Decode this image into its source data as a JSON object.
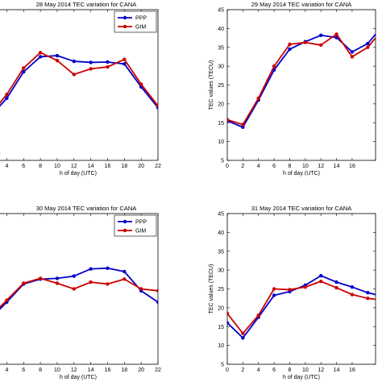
{
  "colors": {
    "PPP": "#0000cc",
    "GIM": "#cc0000"
  },
  "chart_data": [
    {
      "type": "line",
      "title": "28 May 2014 TEC variation for CANA",
      "xlabel": "h of day (UTC)",
      "ylabel": "",
      "xlim": [
        3,
        22
      ],
      "ylim": [
        5,
        45
      ],
      "xticks": [
        "4",
        "6",
        "8",
        "10",
        "12",
        "14",
        "16",
        "18",
        "20",
        "22"
      ],
      "yticks": [],
      "legend": [
        "PPP",
        "GIM"
      ],
      "series": [
        {
          "name": "PPP",
          "x": [
            2,
            4,
            6,
            8,
            10,
            12,
            14,
            16,
            18,
            20,
            22
          ],
          "y": [
            16.5,
            21.5,
            28.5,
            32.5,
            32.8,
            31.3,
            31.0,
            31.1,
            30.6,
            24.5,
            19.0
          ]
        },
        {
          "name": "GIM",
          "x": [
            2,
            4,
            6,
            8,
            10,
            12,
            14,
            16,
            18,
            20,
            22
          ],
          "y": [
            17.0,
            22.5,
            29.5,
            33.6,
            31.5,
            27.8,
            29.3,
            29.8,
            31.8,
            25.2,
            19.5
          ]
        }
      ]
    },
    {
      "type": "line",
      "title": "29 May 2014 TEC variation for CANA",
      "xlabel": "h of day (UTC)",
      "ylabel": "TEC values (TECU)",
      "xlim": [
        0,
        19
      ],
      "ylim": [
        5,
        45
      ],
      "xticks": [
        "0",
        "2",
        "4",
        "6",
        "8",
        "10",
        "12",
        "14",
        "16"
      ],
      "yticks": [
        "5",
        "10",
        "15",
        "20",
        "25",
        "30",
        "35",
        "40",
        "45"
      ],
      "legend": [],
      "series": [
        {
          "name": "PPP",
          "x": [
            0,
            2,
            4,
            6,
            8,
            10,
            12,
            14,
            16,
            18,
            20
          ],
          "y": [
            15.5,
            13.8,
            21.0,
            29.0,
            34.5,
            36.5,
            38.2,
            37.6,
            33.8,
            36.0,
            41.0
          ]
        },
        {
          "name": "GIM",
          "x": [
            0,
            2,
            4,
            6,
            8,
            10,
            12,
            14,
            16,
            18,
            20
          ],
          "y": [
            15.8,
            14.5,
            21.5,
            30.0,
            35.8,
            36.3,
            35.6,
            38.5,
            32.5,
            35.0,
            40.0
          ]
        }
      ]
    },
    {
      "type": "line",
      "title": "30 May 2014 TEC variation for CANA",
      "xlabel": "h of day (UTC)",
      "ylabel": "",
      "xlim": [
        3,
        22
      ],
      "ylim": [
        5,
        45
      ],
      "xticks": [
        "4",
        "6",
        "8",
        "10",
        "12",
        "14",
        "16",
        "18",
        "20",
        "22"
      ],
      "yticks": [],
      "legend": [
        "PPP",
        "GIM"
      ],
      "series": [
        {
          "name": "PPP",
          "x": [
            2,
            4,
            6,
            8,
            10,
            12,
            14,
            16,
            18,
            20,
            22
          ],
          "y": [
            17.0,
            21.5,
            26.3,
            27.6,
            27.8,
            28.4,
            30.3,
            30.5,
            29.6,
            24.5,
            21.5
          ]
        },
        {
          "name": "GIM",
          "x": [
            2,
            4,
            6,
            8,
            10,
            12,
            14,
            16,
            18,
            20,
            22
          ],
          "y": [
            17.5,
            22.0,
            26.5,
            27.8,
            26.5,
            25.0,
            26.8,
            26.3,
            27.6,
            25.0,
            24.5
          ]
        }
      ]
    },
    {
      "type": "line",
      "title": "31 May 2014 TEC variation for CANA",
      "xlabel": "h of day (UTC)",
      "ylabel": "TEC values (TECU)",
      "xlim": [
        0,
        19
      ],
      "ylim": [
        5,
        45
      ],
      "xticks": [
        "0",
        "2",
        "4",
        "6",
        "8",
        "10",
        "12",
        "14",
        "16"
      ],
      "yticks": [
        "5",
        "10",
        "15",
        "20",
        "25",
        "30",
        "35",
        "40",
        "45"
      ],
      "legend": [],
      "series": [
        {
          "name": "PPP",
          "x": [
            0,
            2,
            4,
            6,
            8,
            10,
            12,
            14,
            16,
            18,
            20
          ],
          "y": [
            16.0,
            12.0,
            17.5,
            23.3,
            24.3,
            26.0,
            28.5,
            26.8,
            25.5,
            24.0,
            23.0
          ]
        },
        {
          "name": "GIM",
          "x": [
            0,
            2,
            4,
            6,
            8,
            10,
            12,
            14,
            16,
            18,
            20
          ],
          "y": [
            18.5,
            13.2,
            18.0,
            25.0,
            24.8,
            25.5,
            27.0,
            25.3,
            23.5,
            22.5,
            22.0
          ]
        }
      ]
    }
  ]
}
